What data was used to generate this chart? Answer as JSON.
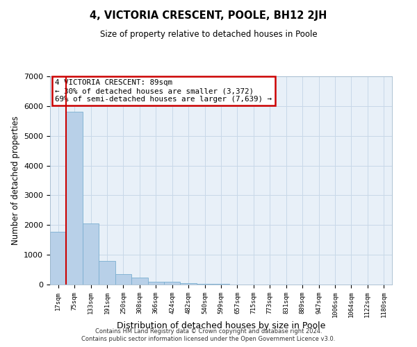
{
  "title": "4, VICTORIA CRESCENT, POOLE, BH12 2JH",
  "subtitle": "Size of property relative to detached houses in Poole",
  "xlabel": "Distribution of detached houses by size in Poole",
  "ylabel": "Number of detached properties",
  "bar_labels": [
    "17sqm",
    "75sqm",
    "133sqm",
    "191sqm",
    "250sqm",
    "308sqm",
    "366sqm",
    "424sqm",
    "482sqm",
    "540sqm",
    "599sqm",
    "657sqm",
    "715sqm",
    "773sqm",
    "831sqm",
    "889sqm",
    "947sqm",
    "1006sqm",
    "1064sqm",
    "1122sqm",
    "1180sqm"
  ],
  "bar_values": [
    1780,
    5800,
    2060,
    800,
    360,
    230,
    105,
    85,
    50,
    30,
    20,
    0,
    0,
    0,
    0,
    0,
    0,
    0,
    0,
    0,
    0
  ],
  "bar_color": "#b8d0e8",
  "bar_edge_color": "#7aaed0",
  "vline_color": "#cc0000",
  "vline_x": 0.5,
  "ylim": [
    0,
    7000
  ],
  "yticks": [
    0,
    1000,
    2000,
    3000,
    4000,
    5000,
    6000,
    7000
  ],
  "annotation_title": "4 VICTORIA CRESCENT: 89sqm",
  "annotation_line1": "← 30% of detached houses are smaller (3,372)",
  "annotation_line2": "69% of semi-detached houses are larger (7,639) →",
  "annotation_box_color": "#ffffff",
  "annotation_box_edge": "#cc0000",
  "footer1": "Contains HM Land Registry data © Crown copyright and database right 2024.",
  "footer2": "Contains public sector information licensed under the Open Government Licence v3.0.",
  "grid_color": "#c8d8e8",
  "background_color": "#e8f0f8"
}
